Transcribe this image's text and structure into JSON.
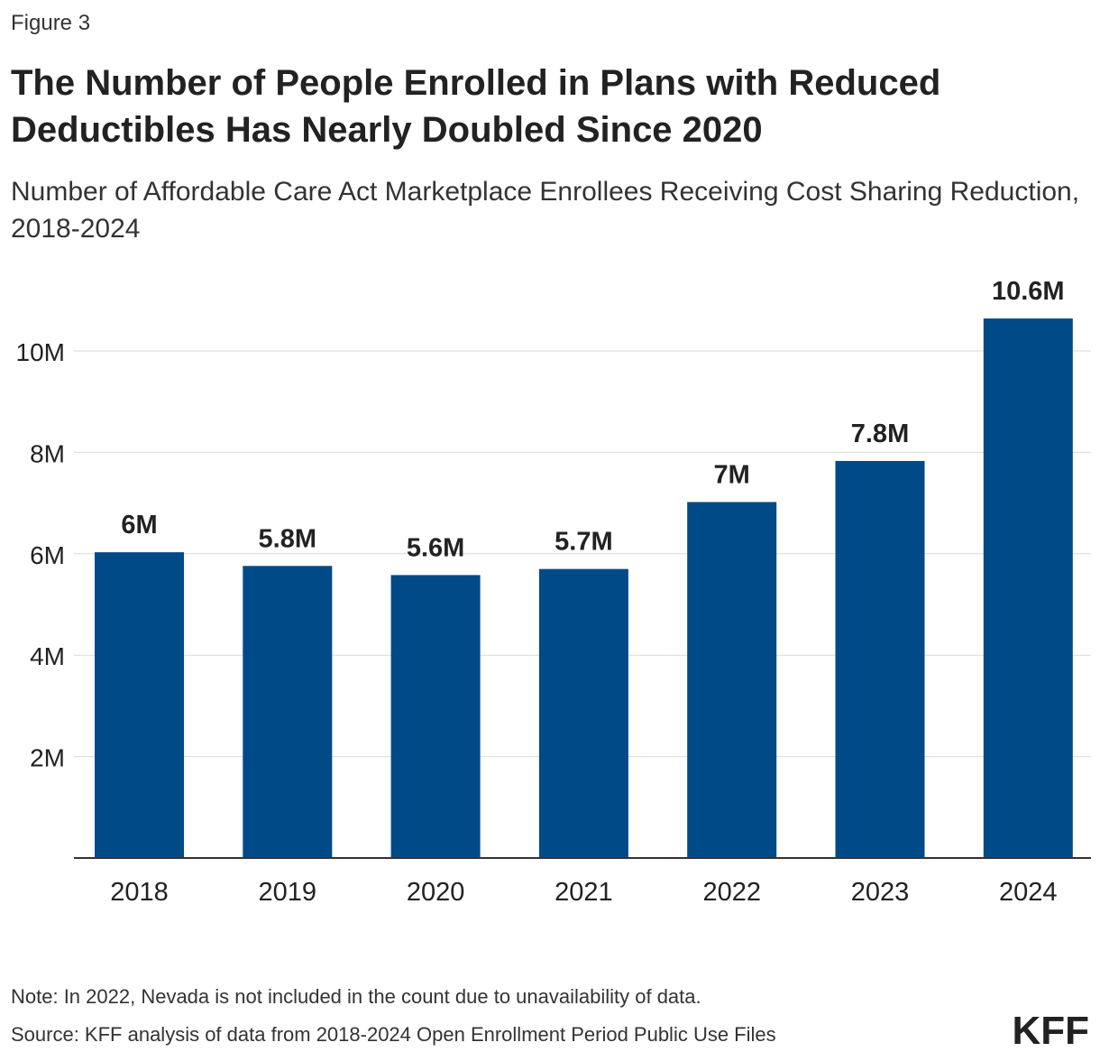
{
  "figure_label": "Figure 3",
  "title": "The Number of People Enrolled in Plans with Reduced Deductibles Has Nearly Doubled Since 2020",
  "subtitle": "Number of Affordable Care Act Marketplace Enrollees Receiving Cost Sharing Reduction, 2018-2024",
  "note": "Note: In 2022, Nevada is not included in the count due to unavailability of data.",
  "source": "Source: KFF analysis of data from 2018-2024 Open Enrollment Period Public Use Files",
  "logo_text": "KFF",
  "colors": {
    "bar": "#004a87",
    "grid": "#d9d9d9",
    "axis": "#333333",
    "text": "#222222"
  },
  "chart_data": {
    "type": "bar",
    "categories": [
      "2018",
      "2019",
      "2020",
      "2021",
      "2022",
      "2023",
      "2024"
    ],
    "values": [
      6.03,
      5.76,
      5.58,
      5.7,
      7.02,
      7.83,
      10.64
    ],
    "data_labels": [
      "6M",
      "5.8M",
      "5.6M",
      "5.7M",
      "7M",
      "7.8M",
      "10.6M"
    ],
    "ytick_values": [
      2,
      4,
      6,
      8,
      10
    ],
    "ytick_labels": [
      "2M",
      "4M",
      "6M",
      "8M",
      "10M"
    ],
    "ylim": [
      0,
      11
    ],
    "grid": true,
    "legend": false
  }
}
